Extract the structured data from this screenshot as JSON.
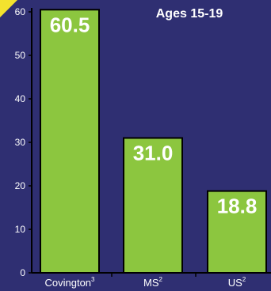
{
  "chart_data": {
    "type": "bar",
    "title": "Ages 15-19",
    "categories": [
      {
        "name": "Covington",
        "sup": "3"
      },
      {
        "name": "MS",
        "sup": "2"
      },
      {
        "name": "US",
        "sup": "2"
      }
    ],
    "values": [
      60.5,
      31.0,
      18.8
    ],
    "value_labels": [
      "60.5",
      "31.0",
      "18.8"
    ],
    "ylim": [
      0,
      60
    ],
    "yticks": [
      0,
      10,
      20,
      30,
      40,
      50,
      60
    ],
    "grid": false,
    "colors": {
      "background": "#2f2f72",
      "bar": "#8cc63f",
      "bar_edge": "#000000",
      "axis": "#000000",
      "text": "#ffffff",
      "accent": "#f3e22e"
    }
  }
}
